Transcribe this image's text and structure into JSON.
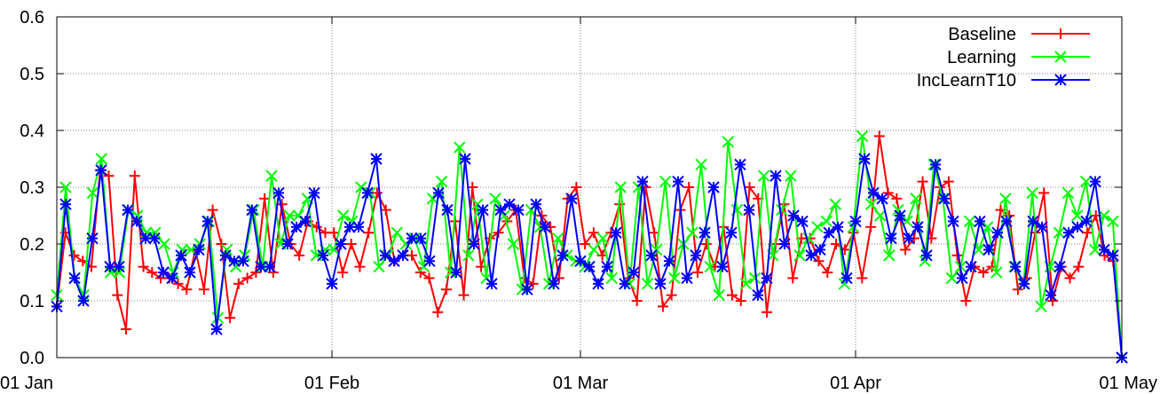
{
  "chart_data": {
    "type": "line",
    "title": "",
    "xlabel": "",
    "ylabel": "",
    "ylim": [
      0.0,
      0.6
    ],
    "yticks": [
      "0.0",
      "0.1",
      "0.2",
      "0.3",
      "0.4",
      "0.5",
      "0.6"
    ],
    "xlim": [
      "2011-01-01",
      "2011-05-01"
    ],
    "xticks": [
      {
        "date": "2011-01-01",
        "label": "01 Jan"
      },
      {
        "date": "2011-02-01",
        "label": "01 Feb"
      },
      {
        "date": "2011-03-01",
        "label": "01 Mar"
      },
      {
        "date": "2011-04-01",
        "label": "01 Apr"
      },
      {
        "date": "2011-05-01",
        "label": "01 May"
      }
    ],
    "grid": true,
    "legend_position": "top-right",
    "series": [
      {
        "name": "Baseline",
        "color": "#ff0000",
        "marker": "plus",
        "values": [
          0.09,
          0.22,
          0.18,
          0.17,
          0.16,
          0.33,
          0.32,
          0.11,
          0.05,
          0.32,
          0.16,
          0.15,
          0.14,
          0.14,
          0.13,
          0.12,
          0.19,
          0.12,
          0.26,
          0.2,
          0.07,
          0.13,
          0.14,
          0.15,
          0.28,
          0.15,
          0.27,
          0.2,
          0.18,
          0.24,
          0.23,
          0.22,
          0.22,
          0.15,
          0.2,
          0.16,
          0.22,
          0.29,
          0.26,
          0.17,
          0.18,
          0.18,
          0.15,
          0.14,
          0.08,
          0.12,
          0.24,
          0.11,
          0.3,
          0.16,
          0.21,
          0.22,
          0.24,
          0.26,
          0.14,
          0.13,
          0.25,
          0.23,
          0.14,
          0.28,
          0.3,
          0.2,
          0.22,
          0.18,
          0.22,
          0.27,
          0.14,
          0.1,
          0.3,
          0.22,
          0.09,
          0.11,
          0.26,
          0.3,
          0.15,
          0.2,
          0.16,
          0.23,
          0.11,
          0.1,
          0.3,
          0.28,
          0.08,
          0.2,
          0.27,
          0.14,
          0.21,
          0.21,
          0.17,
          0.15,
          0.2,
          0.19,
          0.22,
          0.14,
          0.23,
          0.39,
          0.29,
          0.28,
          0.19,
          0.21,
          0.31,
          0.21,
          0.3,
          0.31,
          0.18,
          0.1,
          0.16,
          0.15,
          0.16,
          0.26,
          0.25,
          0.12,
          0.14,
          0.22,
          0.29,
          0.1,
          0.16,
          0.14,
          0.16,
          0.22,
          0.25,
          0.18,
          0.17,
          0.0
        ]
      },
      {
        "name": "Learning",
        "color": "#00ff00",
        "marker": "cross",
        "values": [
          0.11,
          0.3,
          0.14,
          0.11,
          0.29,
          0.35,
          0.15,
          0.15,
          0.26,
          0.25,
          0.22,
          0.22,
          0.2,
          0.15,
          0.19,
          0.19,
          0.2,
          0.24,
          0.07,
          0.19,
          0.16,
          0.18,
          0.26,
          0.16,
          0.32,
          0.2,
          0.25,
          0.25,
          0.28,
          0.18,
          0.19,
          0.19,
          0.25,
          0.24,
          0.3,
          0.29,
          0.16,
          0.18,
          0.22,
          0.2,
          0.21,
          0.16,
          0.28,
          0.31,
          0.15,
          0.37,
          0.18,
          0.27,
          0.14,
          0.28,
          0.25,
          0.2,
          0.12,
          0.26,
          0.23,
          0.13,
          0.21,
          0.18,
          0.17,
          0.16,
          0.19,
          0.21,
          0.14,
          0.3,
          0.13,
          0.3,
          0.13,
          0.19,
          0.31,
          0.14,
          0.2,
          0.22,
          0.34,
          0.16,
          0.11,
          0.38,
          0.26,
          0.13,
          0.14,
          0.32,
          0.18,
          0.26,
          0.32,
          0.18,
          0.21,
          0.23,
          0.24,
          0.27,
          0.13,
          0.23,
          0.39,
          0.27,
          0.25,
          0.18,
          0.26,
          0.24,
          0.28,
          0.17,
          0.34,
          0.28,
          0.14,
          0.16,
          0.24,
          0.19,
          0.23,
          0.15,
          0.28,
          0.16,
          0.13,
          0.29,
          0.09,
          0.16,
          0.22,
          0.29,
          0.25,
          0.31,
          0.19,
          0.25,
          0.24,
          0.0
        ]
      },
      {
        "name": "IncLearnT10",
        "color": "#0000ff",
        "marker": "star",
        "values": [
          0.09,
          0.27,
          0.14,
          0.1,
          0.21,
          0.33,
          0.16,
          0.16,
          0.26,
          0.24,
          0.21,
          0.21,
          0.15,
          0.14,
          0.18,
          0.15,
          0.19,
          0.24,
          0.05,
          0.18,
          0.17,
          0.17,
          0.26,
          0.16,
          0.16,
          0.29,
          0.2,
          0.23,
          0.24,
          0.29,
          0.18,
          0.13,
          0.2,
          0.23,
          0.23,
          0.29,
          0.35,
          0.18,
          0.17,
          0.18,
          0.21,
          0.21,
          0.17,
          0.29,
          0.26,
          0.15,
          0.35,
          0.2,
          0.26,
          0.13,
          0.26,
          0.27,
          0.26,
          0.12,
          0.27,
          0.23,
          0.13,
          0.18,
          0.28,
          0.17,
          0.16,
          0.13,
          0.16,
          0.22,
          0.13,
          0.15,
          0.31,
          0.18,
          0.13,
          0.17,
          0.31,
          0.14,
          0.18,
          0.22,
          0.3,
          0.16,
          0.22,
          0.34,
          0.26,
          0.11,
          0.14,
          0.32,
          0.2,
          0.25,
          0.24,
          0.18,
          0.19,
          0.22,
          0.23,
          0.14,
          0.24,
          0.35,
          0.29,
          0.28,
          0.21,
          0.25,
          0.21,
          0.23,
          0.18,
          0.34,
          0.28,
          0.24,
          0.14,
          0.16,
          0.24,
          0.19,
          0.22,
          0.24,
          0.16,
          0.13,
          0.24,
          0.23,
          0.11,
          0.16,
          0.22,
          0.23,
          0.24,
          0.31,
          0.19,
          0.18,
          0.0
        ]
      }
    ]
  }
}
